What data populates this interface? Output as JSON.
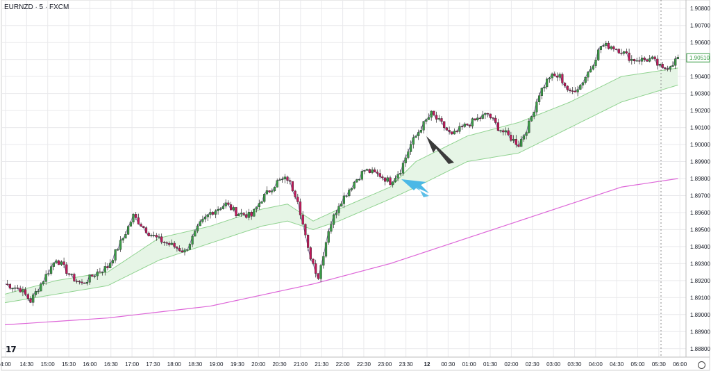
{
  "header": {
    "symbol": "EURNZD · 5 · FXCM"
  },
  "branding": {
    "logo_text": "17"
  },
  "colors": {
    "bull": "#3a9c47",
    "bear": "#c2185b",
    "band_fill": "#e6f5e6",
    "band_line": "#8fd28f",
    "fast_line": "#7b6aa0",
    "slow_ma": "#dd66d8",
    "grid": "#e9e9ec",
    "price_badge_text": "#3a9c47",
    "arrow_blue": "#4bb8e6",
    "arrow_dark": "#3b3b3b"
  },
  "chart_data": {
    "type": "candlestick",
    "ylim": [
      1.8875,
      1.9085
    ],
    "yticks": [
      "1.88800",
      "1.88900",
      "1.89000",
      "1.89100",
      "1.89200",
      "1.89300",
      "1.89400",
      "1.89500",
      "1.89600",
      "1.89700",
      "1.89800",
      "1.89900",
      "1.90000",
      "1.90100",
      "1.90200",
      "1.90300",
      "1.90400",
      "1.90500",
      "1.90600",
      "1.90700",
      "1.90800"
    ],
    "xticks": [
      "4:00",
      "14:30",
      "15:00",
      "15:30",
      "16:00",
      "16:30",
      "17:00",
      "17:30",
      "18:00",
      "18:30",
      "19:00",
      "19:30",
      "20:00",
      "20:30",
      "21:00",
      "21:30",
      "22:00",
      "22:30",
      "23:00",
      "23:30",
      "12",
      "00:30",
      "01:00",
      "01:30",
      "02:00",
      "02:30",
      "03:00",
      "03:30",
      "04:00",
      "04:30",
      "05:00",
      "05:30",
      "06:00",
      "06:"
    ],
    "last_price": "1.90510",
    "grid": true,
    "series": [
      {
        "name": "",
        "kind": "candles",
        "waypoints": [
          [
            0,
            1.8918
          ],
          [
            6,
            1.8915
          ],
          [
            10,
            1.8908
          ],
          [
            16,
            1.8923
          ],
          [
            20,
            1.8933
          ],
          [
            26,
            1.8922
          ],
          [
            30,
            1.8918
          ],
          [
            36,
            1.8925
          ],
          [
            40,
            1.8928
          ],
          [
            46,
            1.8945
          ],
          [
            50,
            1.8958
          ],
          [
            56,
            1.8948
          ],
          [
            60,
            1.8944
          ],
          [
            66,
            1.894
          ],
          [
            70,
            1.8937
          ],
          [
            76,
            1.8953
          ],
          [
            80,
            1.896
          ],
          [
            86,
            1.8965
          ],
          [
            90,
            1.896
          ],
          [
            96,
            1.8958
          ],
          [
            100,
            1.8968
          ],
          [
            106,
            1.8978
          ],
          [
            110,
            1.898
          ],
          [
            114,
            1.8968
          ],
          [
            118,
            1.8938
          ],
          [
            122,
            1.8922
          ],
          [
            126,
            1.895
          ],
          [
            130,
            1.8965
          ],
          [
            136,
            1.8978
          ],
          [
            140,
            1.8985
          ],
          [
            146,
            1.8982
          ],
          [
            150,
            1.8978
          ],
          [
            154,
            1.8985
          ],
          [
            158,
            1.9
          ],
          [
            162,
            1.901
          ],
          [
            166,
            1.9018
          ],
          [
            170,
            1.9012
          ],
          [
            174,
            1.9005
          ],
          [
            178,
            1.901
          ],
          [
            184,
            1.9015
          ],
          [
            188,
            1.9018
          ],
          [
            192,
            1.901
          ],
          [
            196,
            1.9005
          ],
          [
            200,
            1.9
          ],
          [
            204,
            1.9012
          ],
          [
            208,
            1.903
          ],
          [
            212,
            1.904
          ],
          [
            216,
            1.904
          ],
          [
            220,
            1.903
          ],
          [
            224,
            1.9035
          ],
          [
            228,
            1.9045
          ],
          [
            232,
            1.9058
          ],
          [
            236,
            1.9058
          ],
          [
            240,
            1.9055
          ],
          [
            244,
            1.905
          ],
          [
            248,
            1.905
          ],
          [
            252,
            1.905
          ],
          [
            256,
            1.9044
          ],
          [
            260,
            1.9048
          ],
          [
            262,
            1.9051
          ]
        ]
      },
      {
        "name": "",
        "kind": "band-upper",
        "waypoints": [
          [
            0,
            1.8912
          ],
          [
            20,
            1.892
          ],
          [
            40,
            1.8925
          ],
          [
            60,
            1.8945
          ],
          [
            80,
            1.8952
          ],
          [
            100,
            1.8962
          ],
          [
            110,
            1.8965
          ],
          [
            120,
            1.8955
          ],
          [
            130,
            1.8962
          ],
          [
            150,
            1.8975
          ],
          [
            160,
            1.899
          ],
          [
            180,
            1.9005
          ],
          [
            200,
            1.9013
          ],
          [
            220,
            1.9025
          ],
          [
            240,
            1.904
          ],
          [
            262,
            1.9045
          ]
        ]
      },
      {
        "name": "",
        "kind": "band-lower",
        "waypoints": [
          [
            0,
            1.8907
          ],
          [
            20,
            1.8912
          ],
          [
            40,
            1.8917
          ],
          [
            60,
            1.8932
          ],
          [
            80,
            1.8942
          ],
          [
            100,
            1.8952
          ],
          [
            110,
            1.8955
          ],
          [
            120,
            1.895
          ],
          [
            130,
            1.8955
          ],
          [
            150,
            1.8968
          ],
          [
            160,
            1.8975
          ],
          [
            180,
            1.899
          ],
          [
            200,
            1.8995
          ],
          [
            220,
            1.901
          ],
          [
            240,
            1.9025
          ],
          [
            262,
            1.9035
          ]
        ]
      },
      {
        "name": "",
        "kind": "line",
        "waypoints": [
          [
            0,
            1.8894
          ],
          [
            40,
            1.8898
          ],
          [
            80,
            1.8905
          ],
          [
            120,
            1.8918
          ],
          [
            150,
            1.893
          ],
          [
            180,
            1.8945
          ],
          [
            210,
            1.896
          ],
          [
            240,
            1.8975
          ],
          [
            262,
            1.898
          ]
        ]
      }
    ]
  }
}
